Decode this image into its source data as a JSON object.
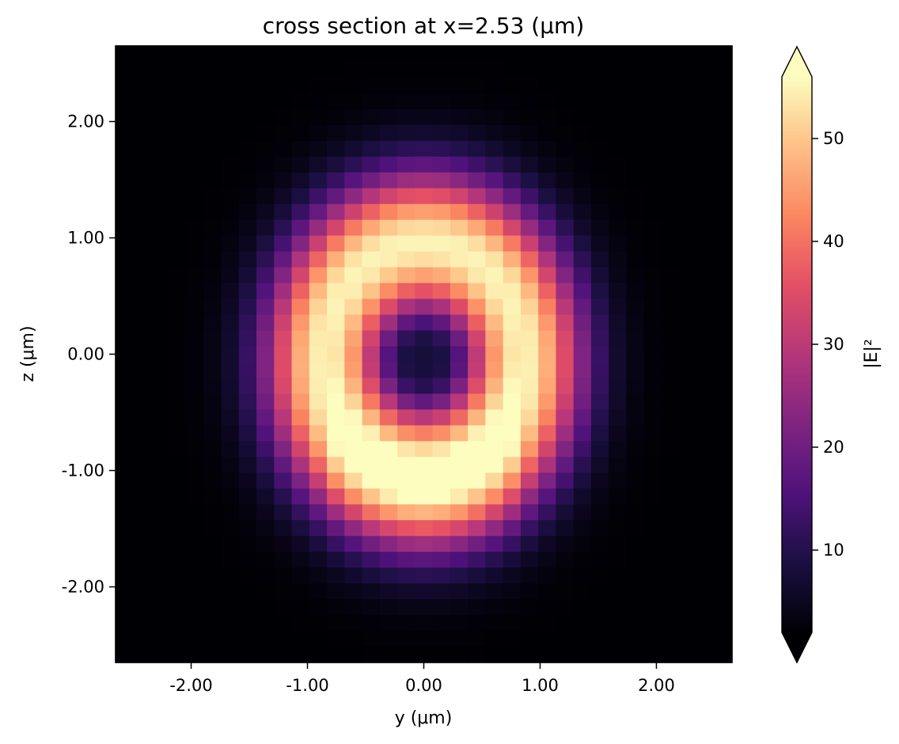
{
  "chart_data": {
    "type": "heatmap",
    "title": "cross section at x=2.53 (μm)",
    "xlabel": "y (μm)",
    "ylabel": "z (μm)",
    "xlim": [
      -2.65,
      2.65
    ],
    "ylim": [
      -2.65,
      2.65
    ],
    "grid": false,
    "x_ticks": [
      -2.0,
      -1.0,
      0.0,
      1.0,
      2.0
    ],
    "x_tick_labels": [
      "-2.00",
      "-1.00",
      "0.00",
      "1.00",
      "2.00"
    ],
    "y_ticks": [
      -2.0,
      -1.0,
      0.0,
      1.0,
      2.0
    ],
    "y_tick_labels": [
      "-2.00",
      "-1.00",
      "0.00",
      "1.00",
      "2.00"
    ],
    "grid_cells": [
      35,
      39
    ],
    "field_model": {
      "description": "|E|² intensity on a 35 (y) × 39 (z) grid: ring-shaped mode with dark center",
      "ring_radius_y": 0.85,
      "ring_radius_z": 1.0,
      "ring_width": 0.55,
      "peak": 55,
      "floor": 2,
      "center_value": 8,
      "center_offset_z": -0.05,
      "lower_lobe_boost": 0.12
    },
    "colorbar": {
      "label": "|E|²",
      "colormap": "magma",
      "vmin": 2,
      "vmax": 56,
      "extend": "both",
      "ticks": [
        10,
        20,
        30,
        40,
        50
      ],
      "tick_labels": [
        "10",
        "20",
        "30",
        "40",
        "50"
      ]
    }
  }
}
